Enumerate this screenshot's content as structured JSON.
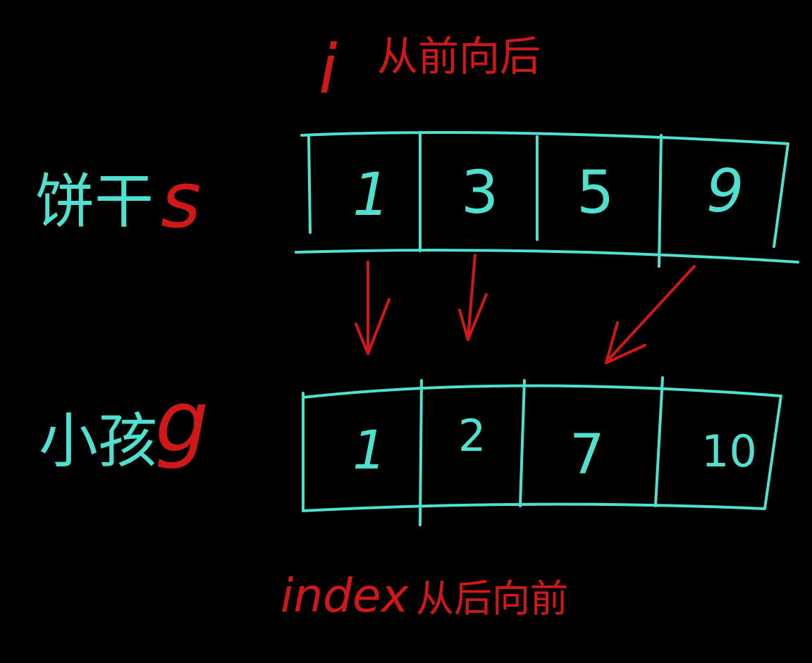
{
  "colors": {
    "background": "#000000",
    "ink_primary": "#4fe0cf",
    "ink_accent": "#d01818"
  },
  "top_label": {
    "pointer": "i",
    "text": "从前向后"
  },
  "bottom_label": {
    "pointer": "index",
    "text": "从后向前"
  },
  "array_top": {
    "label": "饼干",
    "label_suffix": "s",
    "values": [
      "1",
      "3",
      "5",
      "9"
    ]
  },
  "array_bottom": {
    "label": "小孩",
    "label_suffix": "g",
    "values": [
      "1",
      "2",
      "7",
      "10"
    ]
  },
  "arrows": [
    {
      "from": "array_top.values.0",
      "to": "array_bottom"
    },
    {
      "from": "array_top.values.1",
      "to": "array_bottom"
    },
    {
      "from": "array_top.values.3",
      "to": "array_bottom"
    }
  ]
}
